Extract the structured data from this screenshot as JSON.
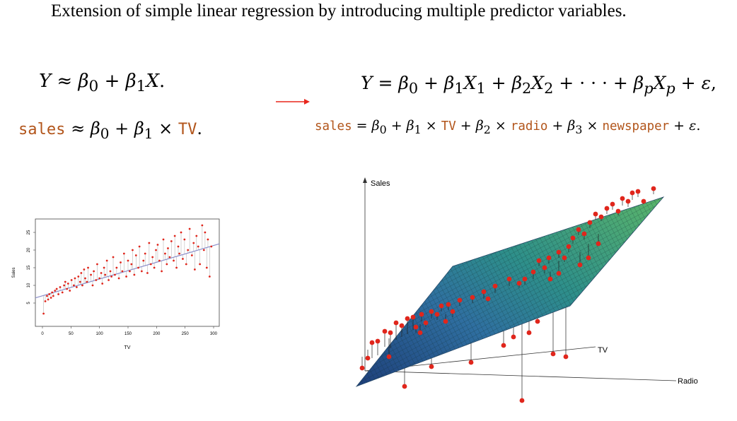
{
  "heading": "Extension of simple linear regression by introducing multiple predictor variables.",
  "equations": {
    "simple_general": {
      "lhs": "Y",
      "rel": "≈",
      "rhs_prefix": "β0 + β1X."
    },
    "multiple_general": "Y = β0 + β1X1 + β2X2 + · · · + βpXp + ε,",
    "simple_sales": {
      "sales": "sales",
      "tv": "TV"
    },
    "multiple_sales": {
      "sales": "sales",
      "tv": "TV",
      "radio": "radio",
      "newspaper": "newspaper"
    }
  },
  "colors": {
    "arrow": "#e8261c",
    "code": "#b2551b",
    "points": "#e0261c",
    "fit_line": "#8a8ec9"
  },
  "chart_data": [
    {
      "type": "scatter",
      "xlabel": "TV",
      "ylabel": "Sales",
      "xlim": [
        0,
        300
      ],
      "ylim": [
        0,
        28
      ],
      "xticks": [
        "0",
        "50",
        "100",
        "150",
        "200",
        "250",
        "300"
      ],
      "yticks": [
        "5",
        "10",
        "15",
        "20",
        "25"
      ],
      "fit": {
        "intercept": 7.03,
        "slope": 0.0475
      },
      "series": [
        {
          "x": [
            2,
            5,
            8,
            10,
            12,
            15,
            17,
            19,
            22,
            25,
            28,
            31,
            35,
            38,
            40,
            43,
            45,
            48,
            51,
            55,
            57,
            60,
            63,
            66,
            68,
            70,
            73,
            75,
            78,
            80,
            85,
            88,
            90,
            94,
            96,
            100,
            103,
            105,
            108,
            110,
            113,
            116,
            119,
            121,
            124,
            127,
            130,
            134,
            137,
            140,
            143,
            147,
            150,
            153,
            156,
            158,
            161,
            164,
            168,
            170,
            174,
            177,
            180,
            184,
            187,
            190,
            193,
            196,
            199,
            202,
            205,
            209,
            212,
            215,
            218,
            220,
            223,
            226,
            230,
            232,
            235,
            238,
            240,
            243,
            246,
            249,
            252,
            255,
            258,
            262,
            265,
            267,
            270,
            273,
            276,
            280,
            283,
            285,
            288,
            290,
            293,
            296
          ],
          "y": [
            2,
            5.5,
            7,
            6,
            7.5,
            6.5,
            8,
            7,
            8.5,
            9,
            7.5,
            9.5,
            8,
            10,
            11,
            9,
            10.5,
            8.5,
            11.5,
            10,
            12,
            9.5,
            12.5,
            11,
            13.5,
            10,
            14.5,
            12,
            11,
            15,
            13,
            10,
            14,
            11.5,
            16,
            12,
            13.5,
            10.5,
            15,
            13,
            17,
            11.5,
            14,
            12.5,
            18,
            13,
            15,
            12,
            16.5,
            14,
            19,
            12.5,
            17,
            14,
            16,
            20,
            13,
            18.5,
            15,
            21,
            14,
            17,
            19,
            13.5,
            22,
            16,
            18,
            15,
            20,
            21.5,
            17,
            14,
            23,
            19,
            16,
            20.5,
            18,
            22.5,
            17,
            24,
            15,
            21,
            19,
            25,
            17.5,
            23,
            16,
            20,
            26,
            18.5,
            22,
            14.5,
            24,
            21,
            16,
            27,
            20,
            25,
            15,
            23,
            12.5,
            21
          ]
        }
      ]
    },
    {
      "type": "scatter",
      "title": "",
      "axes": [
        "Sales",
        "TV",
        "Radio"
      ],
      "note": "3D regression plane with red observations and residual lines"
    }
  ]
}
